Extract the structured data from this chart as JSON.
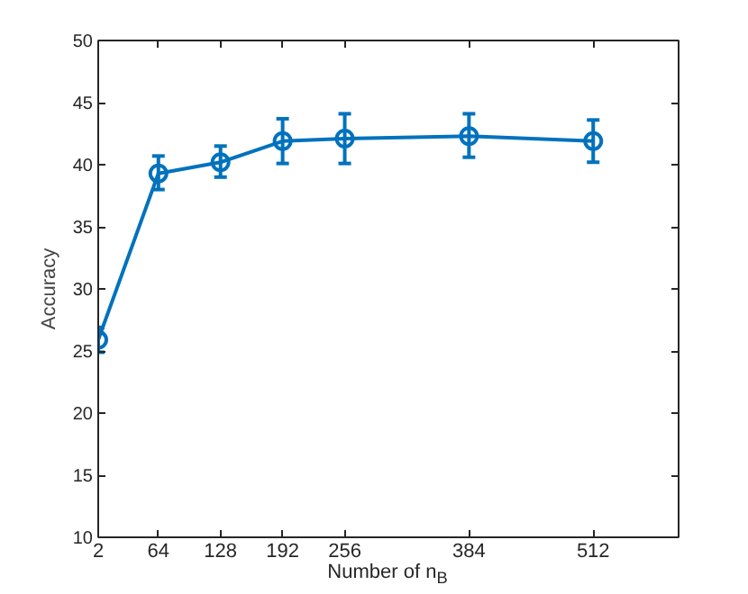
{
  "chart_data": {
    "type": "line",
    "xlabel": "Number of n$_{B}$",
    "ylabel": "Accuracy",
    "x": [
      2,
      64,
      128,
      192,
      256,
      384,
      512
    ],
    "series": [
      {
        "color": "#0072bd",
        "values": [
          25.9,
          39.3,
          40.2,
          41.9,
          42.1,
          42.3,
          41.9
        ],
        "errors": [
          [
            24.9,
            26.9
          ],
          [
            38.0,
            40.7
          ],
          [
            39.0,
            41.5
          ],
          [
            40.1,
            43.7
          ],
          [
            40.1,
            44.1
          ],
          [
            40.6,
            44.1
          ],
          [
            40.2,
            43.6
          ]
        ]
      }
    ],
    "xlim": [
      2,
      600
    ],
    "ylim": [
      10,
      50
    ],
    "xticks": [
      2,
      64,
      128,
      192,
      256,
      384,
      512
    ],
    "yticks": [
      10,
      15,
      20,
      25,
      30,
      35,
      40,
      45,
      50
    ],
    "marker": "circle",
    "line_style": "solid",
    "grid": false
  }
}
